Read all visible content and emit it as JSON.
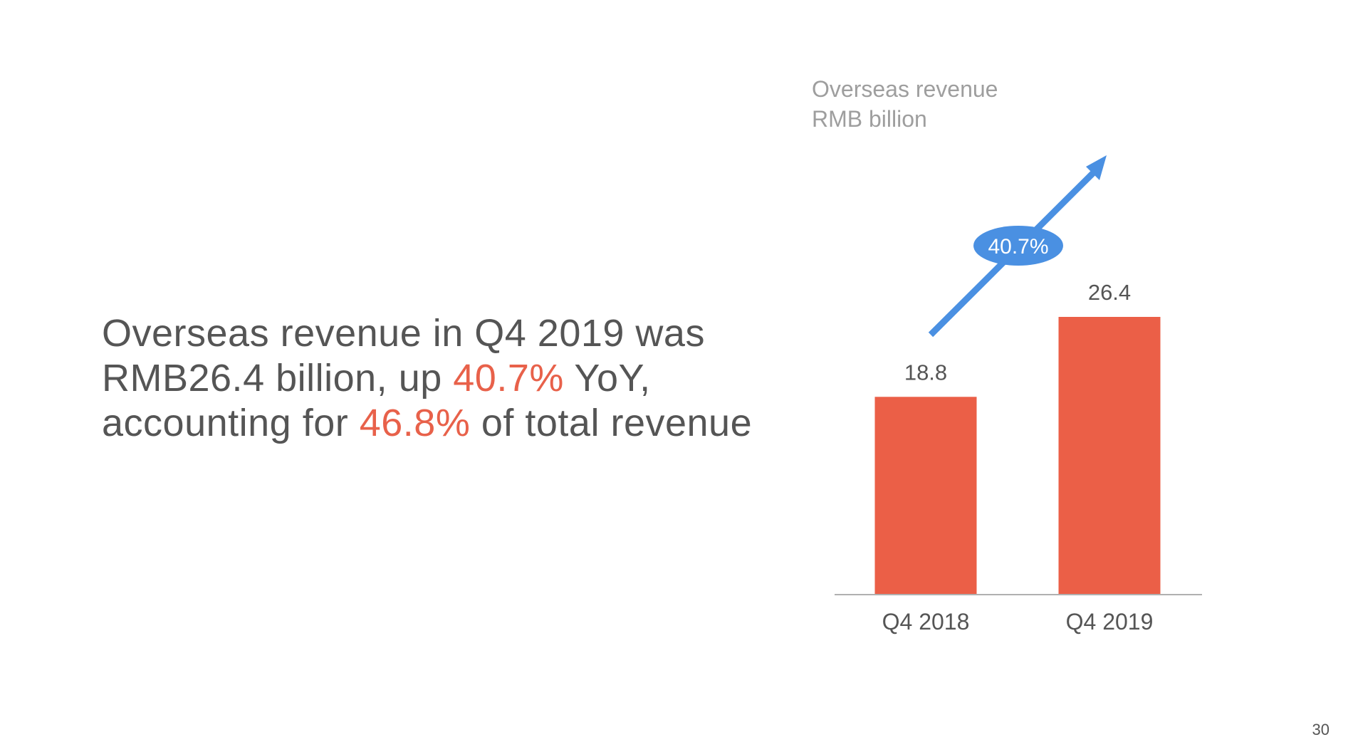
{
  "headline": {
    "part1": "Overseas revenue in Q4 2019 was",
    "part2": "RMB26.4 billion, up ",
    "highlight1": "40.7%",
    "part3": " YoY,",
    "part4": "accounting for ",
    "highlight2": "46.8%",
    "part5": " of total revenue"
  },
  "page_number": "30",
  "colors": {
    "bar": "#eb5f47",
    "highlight": "#e8614a",
    "arrow": "#4a90e2",
    "text": "#555555",
    "caption": "#9e9e9e",
    "axis": "#b0b0b0"
  },
  "chart_data": {
    "type": "bar",
    "title": "Overseas revenue",
    "subtitle": "RMB billion",
    "categories": [
      "Q4 2018",
      "Q4 2019"
    ],
    "values": [
      18.8,
      26.4
    ],
    "value_labels": [
      "18.8",
      "26.4"
    ],
    "ylim": [
      0,
      26.4
    ],
    "grid": false,
    "legend": "none",
    "annotation": {
      "type": "growth-arrow",
      "label": "40.7%"
    }
  }
}
